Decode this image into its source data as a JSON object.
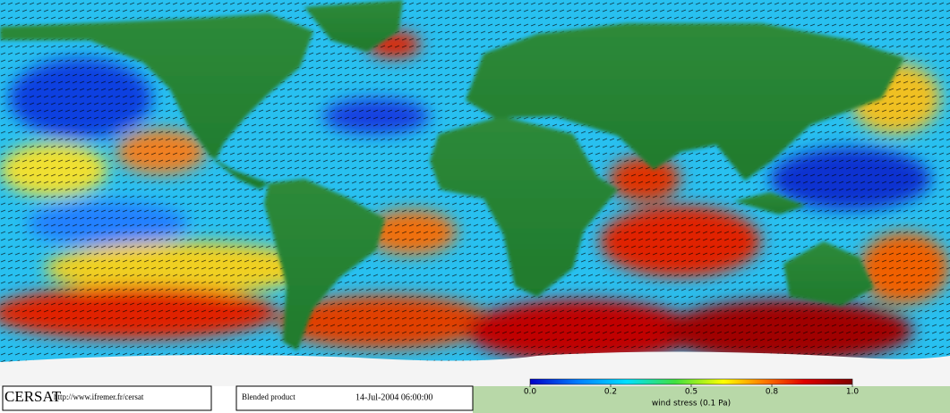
{
  "header": {
    "logo": "CERSAT",
    "url": "http://www.ifremer.fr/cersat"
  },
  "product": "Blended product",
  "timestamp": "14-Jul-2004 06:00:00",
  "colorbar": {
    "ticks": [
      {
        "value": 0,
        "label": "0.0"
      },
      0.2,
      0.5,
      0.8,
      {
        "value": 1,
        "label": "1.0"
      }
    ],
    "label": "wind stress (0.1 Pa)"
  }
}
